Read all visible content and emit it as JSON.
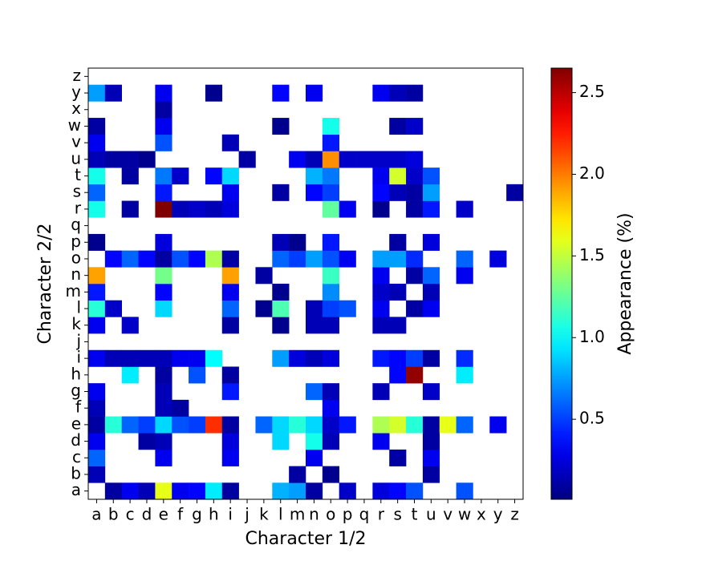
{
  "chart_data": {
    "type": "heatmap",
    "colormap": "jet",
    "x_label": "Character 1/2",
    "y_label": "Character 2/2",
    "colorbar_label": "Appearance (%)",
    "x": [
      "a",
      "b",
      "c",
      "d",
      "e",
      "f",
      "g",
      "h",
      "i",
      "j",
      "k",
      "l",
      "m",
      "n",
      "o",
      "p",
      "q",
      "r",
      "s",
      "t",
      "u",
      "v",
      "w",
      "x",
      "y",
      "z"
    ],
    "y": [
      "a",
      "b",
      "c",
      "d",
      "e",
      "f",
      "g",
      "h",
      "i",
      "j",
      "k",
      "l",
      "m",
      "n",
      "o",
      "p",
      "q",
      "r",
      "s",
      "t",
      "u",
      "v",
      "w",
      "x",
      "y",
      "z"
    ],
    "z": [
      [
        null,
        0.1,
        0.3,
        0.15,
        1.6,
        0.3,
        0.35,
        0.95,
        0.1,
        null,
        null,
        0.8,
        0.75,
        0.1,
        null,
        0.2,
        null,
        0.25,
        0.35,
        0.55,
        null,
        null,
        0.55,
        null,
        null,
        null
      ],
      [
        0.15,
        null,
        null,
        null,
        null,
        null,
        null,
        null,
        null,
        null,
        null,
        null,
        0.1,
        null,
        0.05,
        null,
        null,
        null,
        null,
        null,
        0.1,
        null,
        null,
        null,
        null,
        null
      ],
      [
        0.6,
        null,
        null,
        null,
        0.3,
        null,
        null,
        null,
        0.3,
        null,
        null,
        null,
        null,
        0.3,
        null,
        null,
        null,
        null,
        0.1,
        null,
        0.3,
        null,
        null,
        null,
        null,
        null
      ],
      [
        0.3,
        null,
        null,
        0.1,
        0.15,
        null,
        null,
        null,
        0.25,
        null,
        null,
        0.9,
        null,
        1.05,
        0.15,
        null,
        null,
        0.3,
        null,
        null,
        0.1,
        null,
        null,
        null,
        null,
        null
      ],
      [
        0.1,
        1.1,
        0.6,
        0.5,
        0.9,
        0.55,
        0.5,
        2.2,
        0.1,
        null,
        0.6,
        0.9,
        1.1,
        0.9,
        0.2,
        0.4,
        null,
        1.45,
        1.55,
        1.1,
        0.1,
        1.6,
        0.6,
        null,
        0.3,
        null
      ],
      [
        0.15,
        null,
        null,
        null,
        0.15,
        0.1,
        null,
        null,
        null,
        null,
        null,
        null,
        null,
        null,
        0.3,
        null,
        null,
        null,
        null,
        null,
        null,
        null,
        null,
        null,
        null,
        null
      ],
      [
        0.3,
        null,
        null,
        null,
        0.15,
        null,
        null,
        null,
        0.4,
        null,
        null,
        null,
        null,
        0.6,
        0.15,
        null,
        null,
        0.15,
        null,
        null,
        0.2,
        null,
        null,
        null,
        null,
        null
      ],
      [
        null,
        null,
        0.95,
        null,
        0.1,
        null,
        0.55,
        null,
        0.1,
        null,
        null,
        null,
        null,
        null,
        null,
        null,
        null,
        null,
        0.35,
        2.6,
        null,
        null,
        0.95,
        null,
        null,
        null
      ],
      [
        0.3,
        0.15,
        0.15,
        0.15,
        0.15,
        0.3,
        0.3,
        1.0,
        null,
        null,
        null,
        0.75,
        0.25,
        0.15,
        0.25,
        null,
        null,
        0.4,
        0.35,
        0.5,
        0.1,
        null,
        0.45,
        null,
        null,
        null
      ],
      [
        null,
        null,
        null,
        null,
        null,
        null,
        null,
        null,
        null,
        null,
        null,
        null,
        null,
        null,
        null,
        null,
        null,
        null,
        null,
        null,
        null,
        null,
        null,
        null,
        null,
        null
      ],
      [
        0.3,
        null,
        0.2,
        null,
        null,
        null,
        null,
        null,
        0.1,
        null,
        null,
        0.05,
        null,
        0.15,
        0.15,
        null,
        null,
        0.15,
        0.15,
        null,
        null,
        null,
        null,
        null,
        null,
        null
      ],
      [
        1.1,
        0.2,
        null,
        null,
        0.9,
        null,
        null,
        null,
        0.6,
        null,
        0.05,
        1.2,
        null,
        0.15,
        0.5,
        0.55,
        null,
        0.3,
        null,
        0.1,
        0.3,
        null,
        null,
        null,
        null,
        null
      ],
      [
        0.4,
        null,
        null,
        null,
        0.35,
        null,
        null,
        null,
        0.3,
        null,
        null,
        0.05,
        null,
        null,
        0.7,
        null,
        null,
        0.2,
        0.15,
        null,
        0.15,
        null,
        null,
        null,
        null,
        null
      ],
      [
        1.9,
        null,
        null,
        null,
        1.3,
        null,
        null,
        null,
        1.9,
        null,
        0.1,
        null,
        null,
        null,
        1.15,
        null,
        null,
        0.3,
        null,
        0.1,
        0.6,
        null,
        0.3,
        null,
        null,
        null
      ],
      [
        null,
        0.35,
        0.6,
        0.35,
        0.1,
        0.55,
        0.35,
        1.45,
        0.1,
        null,
        null,
        0.6,
        0.5,
        0.75,
        0.55,
        0.3,
        null,
        0.75,
        0.75,
        0.45,
        null,
        null,
        0.6,
        null,
        0.25,
        null
      ],
      [
        0.05,
        null,
        null,
        null,
        0.25,
        null,
        null,
        null,
        null,
        null,
        null,
        0.15,
        0.05,
        null,
        0.4,
        null,
        null,
        null,
        0.1,
        null,
        0.25,
        null,
        null,
        null,
        null,
        null
      ],
      [
        null,
        null,
        null,
        null,
        null,
        null,
        null,
        null,
        null,
        null,
        null,
        null,
        null,
        null,
        null,
        null,
        null,
        null,
        null,
        null,
        null,
        null,
        null,
        null,
        null,
        null
      ],
      [
        1.05,
        null,
        0.1,
        null,
        2.65,
        0.15,
        0.2,
        0.15,
        0.25,
        null,
        null,
        null,
        null,
        null,
        1.25,
        0.3,
        null,
        0.05,
        null,
        0.1,
        0.4,
        null,
        0.2,
        null,
        null,
        null
      ],
      [
        0.6,
        null,
        null,
        null,
        0.4,
        null,
        null,
        null,
        0.3,
        null,
        null,
        0.1,
        null,
        0.35,
        0.5,
        null,
        null,
        0.35,
        0.15,
        0.1,
        0.75,
        null,
        null,
        null,
        null,
        0.1
      ],
      [
        1.05,
        null,
        0.1,
        null,
        0.65,
        0.2,
        null,
        0.35,
        0.9,
        null,
        null,
        null,
        null,
        0.8,
        0.65,
        null,
        null,
        0.3,
        1.55,
        0.2,
        0.55,
        null,
        null,
        null,
        null,
        null
      ],
      [
        0.15,
        0.1,
        0.1,
        0.05,
        null,
        null,
        null,
        null,
        null,
        0.1,
        null,
        null,
        0.3,
        0.15,
        1.95,
        0.2,
        0.2,
        0.2,
        0.2,
        0.25,
        null,
        null,
        null,
        null,
        null,
        null
      ],
      [
        0.3,
        null,
        null,
        null,
        0.55,
        null,
        null,
        null,
        0.15,
        null,
        null,
        null,
        null,
        null,
        0.4,
        null,
        null,
        null,
        null,
        null,
        null,
        null,
        null,
        null,
        null,
        null
      ],
      [
        0.1,
        null,
        null,
        null,
        0.3,
        null,
        null,
        null,
        null,
        null,
        null,
        0.05,
        null,
        null,
        1.05,
        null,
        null,
        null,
        0.1,
        0.2,
        null,
        null,
        null,
        null,
        null,
        null
      ],
      [
        null,
        null,
        null,
        null,
        0.1,
        null,
        null,
        null,
        null,
        null,
        null,
        null,
        null,
        null,
        null,
        null,
        null,
        null,
        null,
        null,
        null,
        null,
        null,
        null,
        null,
        null
      ],
      [
        0.75,
        0.15,
        null,
        null,
        0.3,
        null,
        null,
        0.05,
        null,
        null,
        null,
        0.35,
        null,
        0.3,
        null,
        null,
        null,
        0.3,
        0.15,
        0.1,
        null,
        null,
        null,
        null,
        null,
        null
      ],
      [
        null,
        null,
        null,
        null,
        null,
        null,
        null,
        null,
        null,
        null,
        null,
        null,
        null,
        null,
        null,
        null,
        null,
        null,
        null,
        null,
        null,
        null,
        null,
        null,
        null,
        null
      ]
    ],
    "clim": [
      0.01,
      2.65
    ],
    "cticks": [
      0.5,
      {
        "value": 1,
        "label": "1.0"
      },
      1.5,
      {
        "value": 2,
        "label": "2.0"
      },
      2.5
    ]
  }
}
